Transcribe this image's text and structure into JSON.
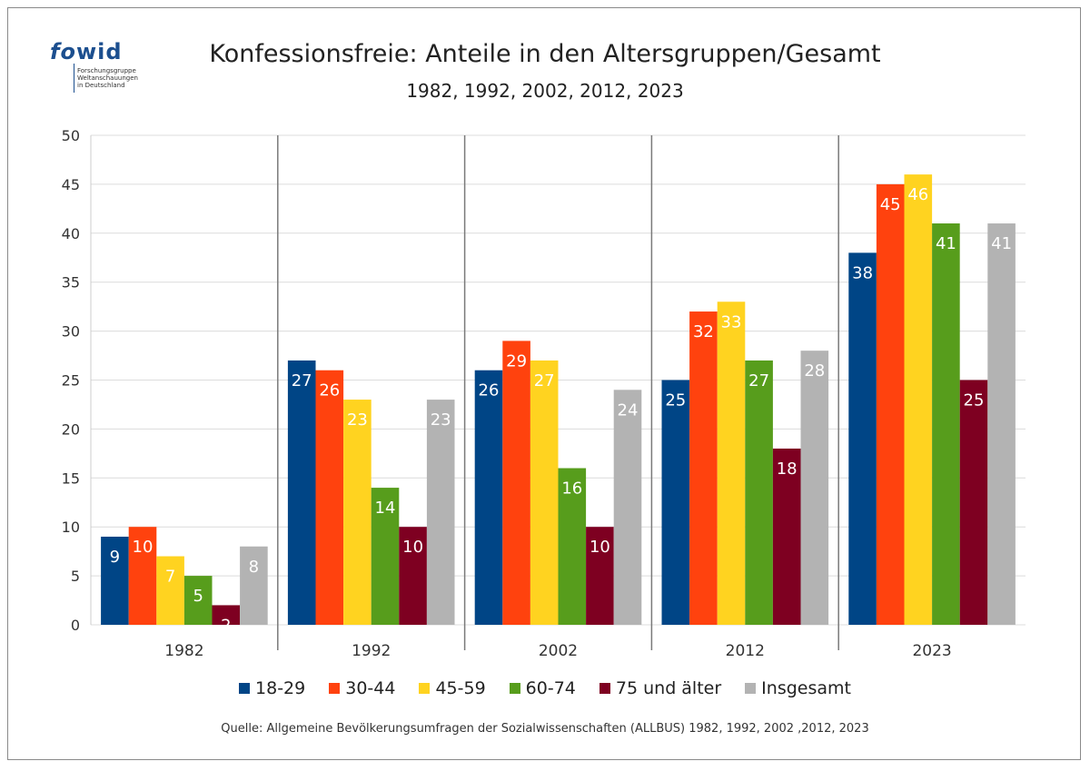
{
  "logo": {
    "mark_fo": "fo",
    "mark_wid": "wid",
    "lines": [
      "Forschungsgruppe",
      "Weltanschauungen",
      "in Deutschland"
    ]
  },
  "source": "Quelle: Allgemeine Bevölkerungsumfragen der Sozialwissenschaften (ALLBUS) 1982, 1992, 2002 ,2012, 2023",
  "chart_data": {
    "type": "bar",
    "title": "Konfessionsfreie: Anteile in den Altersgruppen/Gesamt",
    "subtitle": "1982, 1992, 2002, 2012, 2023",
    "categories": [
      "1982",
      "1992",
      "2002",
      "2012",
      "2023"
    ],
    "ylim": [
      0,
      50
    ],
    "yticks": [
      0,
      5,
      10,
      15,
      20,
      25,
      30,
      35,
      40,
      45,
      50
    ],
    "grid": true,
    "legend_position": "bottom",
    "series": [
      {
        "name": "18-29",
        "color": "#004586",
        "values": [
          9,
          27,
          26,
          25,
          38
        ]
      },
      {
        "name": "30-44",
        "color": "#ff420e",
        "values": [
          10,
          26,
          29,
          32,
          45
        ]
      },
      {
        "name": "45-59",
        "color": "#ffd320",
        "values": [
          7,
          23,
          27,
          33,
          46
        ]
      },
      {
        "name": "60-74",
        "color": "#579d1c",
        "values": [
          5,
          14,
          16,
          27,
          41
        ]
      },
      {
        "name": "75 und älter",
        "color": "#7e0021",
        "values": [
          2,
          10,
          10,
          18,
          25
        ]
      },
      {
        "name": "Insgesamt",
        "color": "#b3b3b3",
        "values": [
          8,
          23,
          24,
          28,
          41
        ]
      }
    ]
  }
}
